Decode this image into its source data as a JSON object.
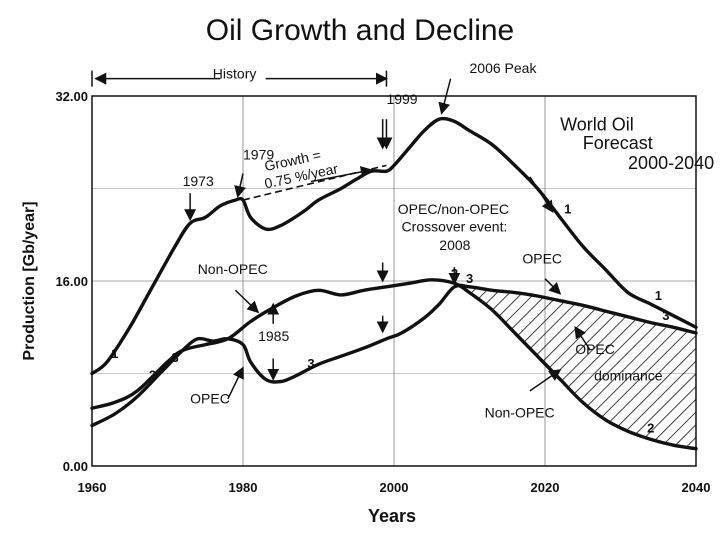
{
  "chart_data": {
    "type": "line",
    "title": "Oil Growth and Decline",
    "xlabel": "Years",
    "ylabel": "Production  [Gb/year]",
    "xlim": [
      1960,
      2040
    ],
    "ylim": [
      0,
      32
    ],
    "x_ticks": [
      "1960",
      "1980",
      "2000",
      "2020",
      "2040"
    ],
    "y_ticks": [
      "0.00",
      "16.00",
      "32.00"
    ],
    "series": [
      {
        "name": "World Oil",
        "marker": "1",
        "points": [
          [
            1960,
            8
          ],
          [
            1962,
            9
          ],
          [
            1965,
            12
          ],
          [
            1968,
            15.5
          ],
          [
            1971,
            19
          ],
          [
            1973,
            21
          ],
          [
            1975,
            21.5
          ],
          [
            1977,
            22.5
          ],
          [
            1979,
            23
          ],
          [
            1980,
            23
          ],
          [
            1981,
            21.5
          ],
          [
            1983,
            20.5
          ],
          [
            1985,
            20.8
          ],
          [
            1988,
            22
          ],
          [
            1990,
            23
          ],
          [
            1993,
            24
          ],
          [
            1995,
            24.8
          ],
          [
            1997,
            25.5
          ],
          [
            1999,
            25.5
          ],
          [
            2000,
            26
          ],
          [
            2002,
            27.5
          ],
          [
            2004,
            29
          ],
          [
            2006,
            30
          ],
          [
            2008,
            29.8
          ],
          [
            2010,
            29
          ],
          [
            2013,
            27.8
          ],
          [
            2016,
            26
          ],
          [
            2019,
            24
          ],
          [
            2022,
            21.5
          ],
          [
            2025,
            19
          ],
          [
            2028,
            17
          ],
          [
            2031,
            15
          ],
          [
            2034,
            14
          ],
          [
            2037,
            13
          ],
          [
            2040,
            12
          ]
        ]
      },
      {
        "name": "Non-OPEC",
        "marker": "2",
        "points": [
          [
            1960,
            5
          ],
          [
            1963,
            5.5
          ],
          [
            1966,
            6.5
          ],
          [
            1970,
            9
          ],
          [
            1972,
            10
          ],
          [
            1975,
            10.5
          ],
          [
            1978,
            11
          ],
          [
            1981,
            12.5
          ],
          [
            1984,
            13.7
          ],
          [
            1987,
            14.7
          ],
          [
            1990,
            15.2
          ],
          [
            1993,
            14.8
          ],
          [
            1996,
            15.2
          ],
          [
            1999,
            15.5
          ],
          [
            2002,
            15.8
          ],
          [
            2005,
            16.1
          ],
          [
            2008,
            15.8
          ],
          [
            2010,
            15
          ],
          [
            2013,
            13.5
          ],
          [
            2016,
            11.5
          ],
          [
            2019,
            9.5
          ],
          [
            2022,
            7.5
          ],
          [
            2025,
            5.5
          ],
          [
            2028,
            4
          ],
          [
            2031,
            3
          ],
          [
            2034,
            2.3
          ],
          [
            2037,
            1.8
          ],
          [
            2040,
            1.5
          ]
        ]
      },
      {
        "name": "OPEC",
        "marker": "3",
        "points": [
          [
            1960,
            3.5
          ],
          [
            1963,
            4.5
          ],
          [
            1966,
            6
          ],
          [
            1969,
            8
          ],
          [
            1972,
            10
          ],
          [
            1974,
            11
          ],
          [
            1976,
            10.8
          ],
          [
            1978,
            11
          ],
          [
            1980,
            10.5
          ],
          [
            1981,
            9
          ],
          [
            1983,
            7.5
          ],
          [
            1985,
            7.3
          ],
          [
            1987,
            7.8
          ],
          [
            1990,
            8.8
          ],
          [
            1993,
            9.5
          ],
          [
            1996,
            10.2
          ],
          [
            1999,
            11
          ],
          [
            2001,
            11.5
          ],
          [
            2004,
            12.8
          ],
          [
            2006,
            14
          ],
          [
            2008,
            15.5
          ],
          [
            2010,
            15.5
          ],
          [
            2013,
            15.2
          ],
          [
            2016,
            15
          ],
          [
            2019,
            14.7
          ],
          [
            2022,
            14.3
          ],
          [
            2025,
            13.9
          ],
          [
            2028,
            13.4
          ],
          [
            2031,
            12.9
          ],
          [
            2034,
            12.4
          ],
          [
            2037,
            12
          ],
          [
            2040,
            11.5
          ]
        ]
      }
    ],
    "annotations": [
      {
        "text": "History",
        "x": 1976,
        "y": 33.5
      },
      {
        "text": "2006 Peak",
        "x": 2010,
        "y": 34
      },
      {
        "text": "1999",
        "x": 1999,
        "y": 31.3
      },
      {
        "text": "1979",
        "x": 1980,
        "y": 26.5
      },
      {
        "text": "1973",
        "x": 1972,
        "y": 24.2
      },
      {
        "text": "Growth =",
        "x": 1983,
        "y": 25.5
      },
      {
        "text": "0.75 %/year",
        "x": 1983,
        "y": 24
      },
      {
        "text": "World Oil",
        "x": 2022,
        "y": 29
      },
      {
        "text": "Forecast",
        "x": 2025,
        "y": 27.4
      },
      {
        "text": "2000-2040",
        "x": 2031,
        "y": 25.7
      },
      {
        "text": "OPEC/non-OPEC",
        "x": 2000.5,
        "y": 21.8
      },
      {
        "text": "Crossover event:",
        "x": 2001,
        "y": 20.3
      },
      {
        "text": "2008",
        "x": 2006,
        "y": 18.7
      },
      {
        "text": "OPEC",
        "x": 2017,
        "y": 17.5
      },
      {
        "text": "Non-OPEC",
        "x": 1974,
        "y": 16.6
      },
      {
        "text": "1985",
        "x": 1982,
        "y": 10.8
      },
      {
        "text": "OPEC",
        "x": 1973,
        "y": 5.4
      },
      {
        "text": "OPEC",
        "x": 2024,
        "y": 9.7
      },
      {
        "text": "dominance",
        "x": 2026.5,
        "y": 7.4
      },
      {
        "text": "Non-OPEC",
        "x": 2012,
        "y": 4.2
      }
    ],
    "shaded_region": "OPEC dominance between OPEC and Non-OPEC curves from 2008 to 2040",
    "grid": true
  }
}
